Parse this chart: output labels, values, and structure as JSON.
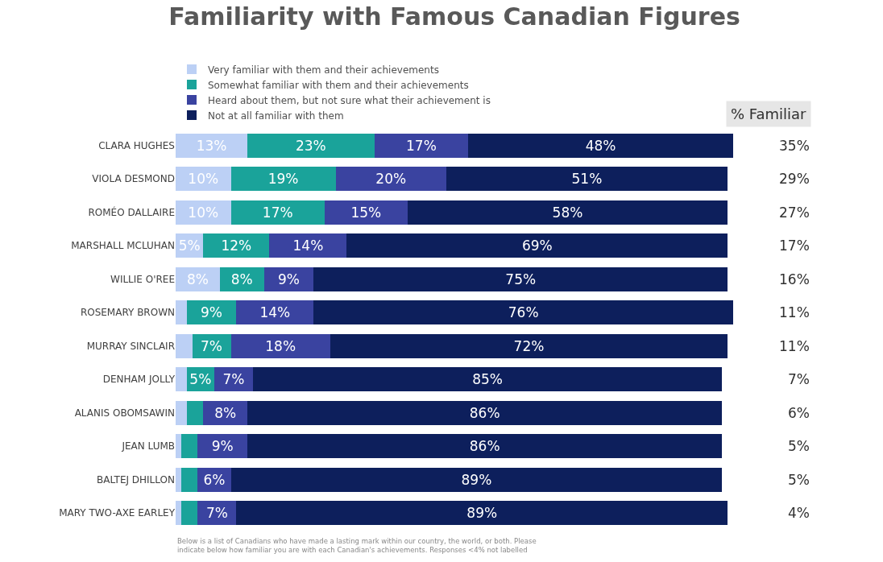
{
  "chart_data": {
    "type": "bar",
    "orientation": "horizontal",
    "stacked": true,
    "title": "Familiarity with Famous Canadian Figures",
    "categories": [
      "CLARA HUGHES",
      "VIOLA DESMOND",
      "ROMÉO DALLAIRE",
      "MARSHALL MCLUHAN",
      "WILLIE O'REE",
      "ROSEMARY BROWN",
      "MURRAY SINCLAIR",
      "DENHAM JOLLY",
      "ALANIS OBOMSAWIN",
      "JEAN LUMB",
      "BALTEJ DHILLON",
      "MARY TWO-AXE EARLEY"
    ],
    "series": [
      {
        "name": "Very familiar with them and their achievements",
        "color": "#bcd0f5",
        "values": [
          13,
          10,
          10,
          5,
          8,
          2,
          3,
          2,
          2,
          1,
          1,
          1
        ],
        "value_labels": [
          "13%",
          "10%",
          "10%",
          "5%",
          "8%",
          null,
          null,
          null,
          null,
          null,
          null,
          null
        ]
      },
      {
        "name": "Somewhat familiar with them and their achievements",
        "color": "#1aa39a",
        "values": [
          23,
          19,
          17,
          12,
          8,
          9,
          7,
          5,
          3,
          3,
          3,
          3
        ],
        "value_labels": [
          "23%",
          "19%",
          "17%",
          "12%",
          "8%",
          "9%",
          "7%",
          "5%",
          null,
          null,
          null,
          null
        ]
      },
      {
        "name": "Heard about them, but not sure what their achievement is",
        "color": "#3a43a0",
        "values": [
          17,
          20,
          15,
          14,
          9,
          14,
          18,
          7,
          8,
          9,
          6,
          7
        ],
        "value_labels": [
          "17%",
          "20%",
          "15%",
          "14%",
          "9%",
          "14%",
          "18%",
          "7%",
          "8%",
          "9%",
          "6%",
          "7%"
        ]
      },
      {
        "name": "Not at all familiar with them",
        "color": "#0d1f5c",
        "values": [
          48,
          51,
          58,
          69,
          75,
          76,
          72,
          85,
          86,
          86,
          89,
          89
        ],
        "value_labels": [
          "48%",
          "51%",
          "58%",
          "69%",
          "75%",
          "76%",
          "72%",
          "85%",
          "86%",
          "86%",
          "89%",
          "89%"
        ]
      }
    ],
    "xlim": [
      0,
      101
    ],
    "tick_labels": "y",
    "grid": false,
    "legend": "top left",
    "annotations": [
      "% Familiar",
      "35%",
      "29%",
      "27%",
      "17%",
      "16%",
      "11%",
      "11%",
      "7%",
      "6%",
      "5%",
      "5%",
      "4%",
      "Below is a list of Canadians who have made a lasting mark within our country, the world, or both. Please indicate below how familiar you are with each Canadian's achievements. Responses <4% not labelled"
    ]
  }
}
